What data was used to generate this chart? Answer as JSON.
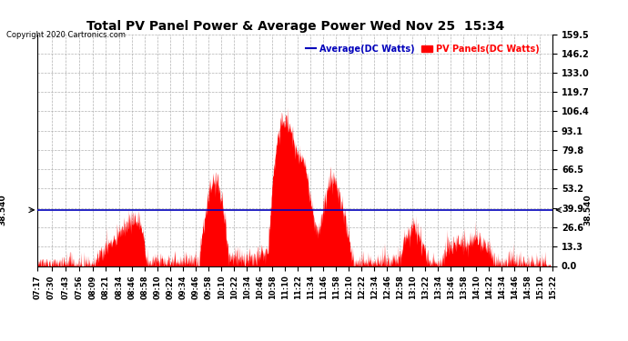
{
  "title": "Total PV Panel Power & Average Power Wed Nov 25  15:34",
  "copyright": "Copyright 2020 Cartronics.com",
  "legend_average": "Average(DC Watts)",
  "legend_pv": "PV Panels(DC Watts)",
  "average_value": 38.54,
  "average_label": "38.540",
  "ymin": 0.0,
  "ymax": 159.5,
  "yticks": [
    0.0,
    13.3,
    26.6,
    39.9,
    53.2,
    66.5,
    79.8,
    93.1,
    106.4,
    119.7,
    133.0,
    146.2,
    159.5
  ],
  "xstart_minutes": 437,
  "xend_minutes": 922,
  "xtick_labels": [
    "07:17",
    "07:30",
    "07:43",
    "07:56",
    "08:09",
    "08:21",
    "08:34",
    "08:46",
    "08:58",
    "09:10",
    "09:22",
    "09:34",
    "09:46",
    "09:58",
    "10:10",
    "10:22",
    "10:34",
    "10:46",
    "10:58",
    "11:10",
    "11:22",
    "11:34",
    "11:46",
    "11:58",
    "12:10",
    "12:22",
    "12:34",
    "12:46",
    "12:58",
    "13:10",
    "13:22",
    "13:34",
    "13:46",
    "13:58",
    "14:10",
    "14:22",
    "14:34",
    "14:46",
    "14:58",
    "15:10",
    "15:22"
  ],
  "background_color": "#ffffff",
  "grid_color": "#aaaaaa",
  "pv_color": "#ff0000",
  "average_line_color": "#0000bb",
  "title_color": "#000000",
  "copyright_color": "#000000",
  "legend_average_color": "#0000bb",
  "legend_pv_color": "#ff0000"
}
